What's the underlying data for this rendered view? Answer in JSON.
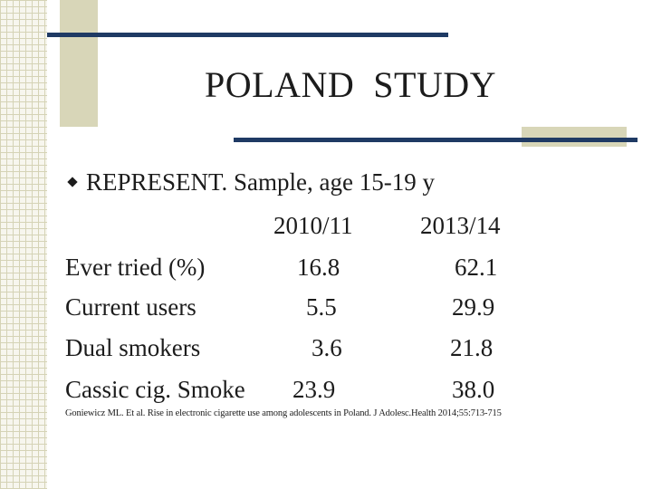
{
  "slide": {
    "title": "POLAND  STUDY",
    "bullet": "REPRESENT. Sample, age  15-19 y",
    "table": {
      "columns": [
        "2010/11",
        "2013/14"
      ],
      "rows": [
        {
          "label": "Ever tried (%)",
          "values": [
            "16.8",
            "62.1"
          ]
        },
        {
          "label": "Current users",
          "values": [
            "5.5",
            "29.9"
          ]
        },
        {
          "label": "Dual smokers",
          "values": [
            "3.6",
            "21.8"
          ]
        },
        {
          "label": "Cassic cig. Smoke",
          "values": [
            "23.9",
            "38.0"
          ]
        }
      ]
    },
    "footnote": "Goniewicz ML. Et al. Rise in electronic cigarette use among adolescents in Poland. J Adolesc.Health 2014;55:713-715"
  },
  "colors": {
    "rule": "#1f3a64",
    "accent": "#d8d6b8",
    "text": "#1c1c1c"
  }
}
